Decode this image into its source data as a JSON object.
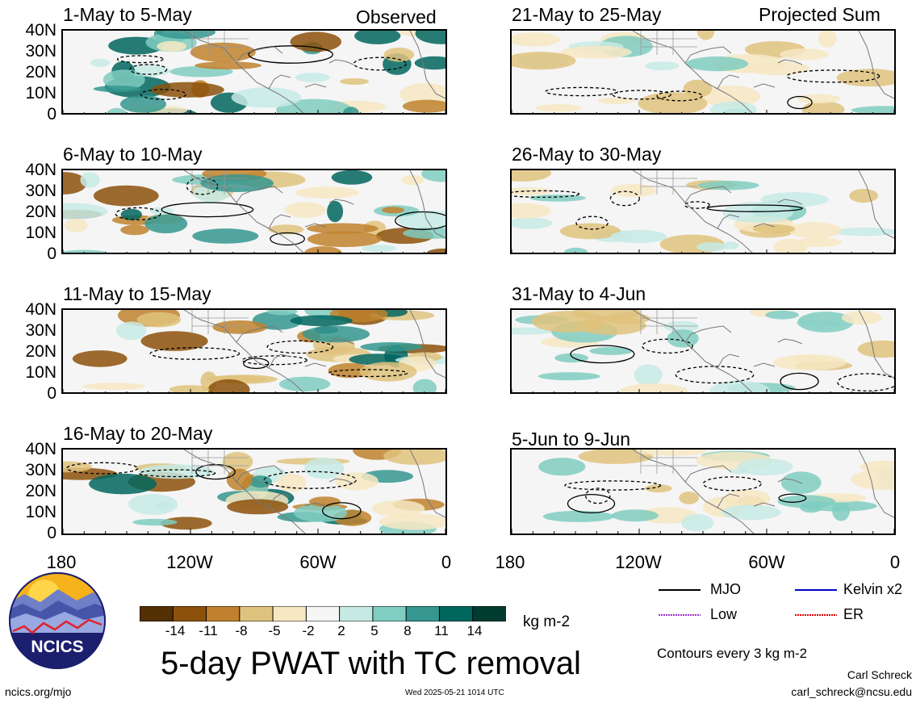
{
  "panels": {
    "observed_label": "Observed",
    "projected_label": "Projected Sum",
    "left": [
      {
        "period": "1-May to 5-May"
      },
      {
        "period": "6-May to 10-May"
      },
      {
        "period": "11-May to 15-May"
      },
      {
        "period": "16-May to 20-May"
      }
    ],
    "right": [
      {
        "period": "21-May to 25-May"
      },
      {
        "period": "26-May to 30-May"
      },
      {
        "period": "31-May to 4-Jun"
      },
      {
        "period": "5-Jun to 9-Jun"
      }
    ]
  },
  "lat_ticks": [
    "40N",
    "30N",
    "20N",
    "10N",
    "0"
  ],
  "lon_ticks": [
    "180",
    "120W",
    "60W",
    "0"
  ],
  "colorbar": {
    "labels": [
      "-14",
      "-11",
      "-8",
      "-5",
      "-2",
      "2",
      "5",
      "8",
      "11",
      "14"
    ],
    "colors": [
      "#543005",
      "#8c510a",
      "#bf812d",
      "#dfc27d",
      "#f6e8c3",
      "#f5f5f5",
      "#c7eae5",
      "#80cdc1",
      "#35978f",
      "#01665e",
      "#003c30"
    ],
    "units": "kg m-2"
  },
  "title": "5-day PWAT with TC removal",
  "legend": {
    "items": [
      {
        "label": "MJO",
        "color": "#000000",
        "style": "solid"
      },
      {
        "label": "Kelvin x2",
        "color": "#0000cc",
        "style": "solid"
      },
      {
        "label": "Low",
        "color": "#9933cc",
        "style": "dotted"
      },
      {
        "label": "ER",
        "color": "#dd0000",
        "style": "dotted"
      }
    ],
    "contour_note": "Contours every 3 kg m-2"
  },
  "logo": {
    "text": "NCICS"
  },
  "footer": {
    "url": "ncics.org/mjo",
    "timestamp": "Wed 2025-05-21 1014 UTC",
    "author": "Carl Schreck",
    "email": "carl_schreck@ncsu.edu"
  }
}
